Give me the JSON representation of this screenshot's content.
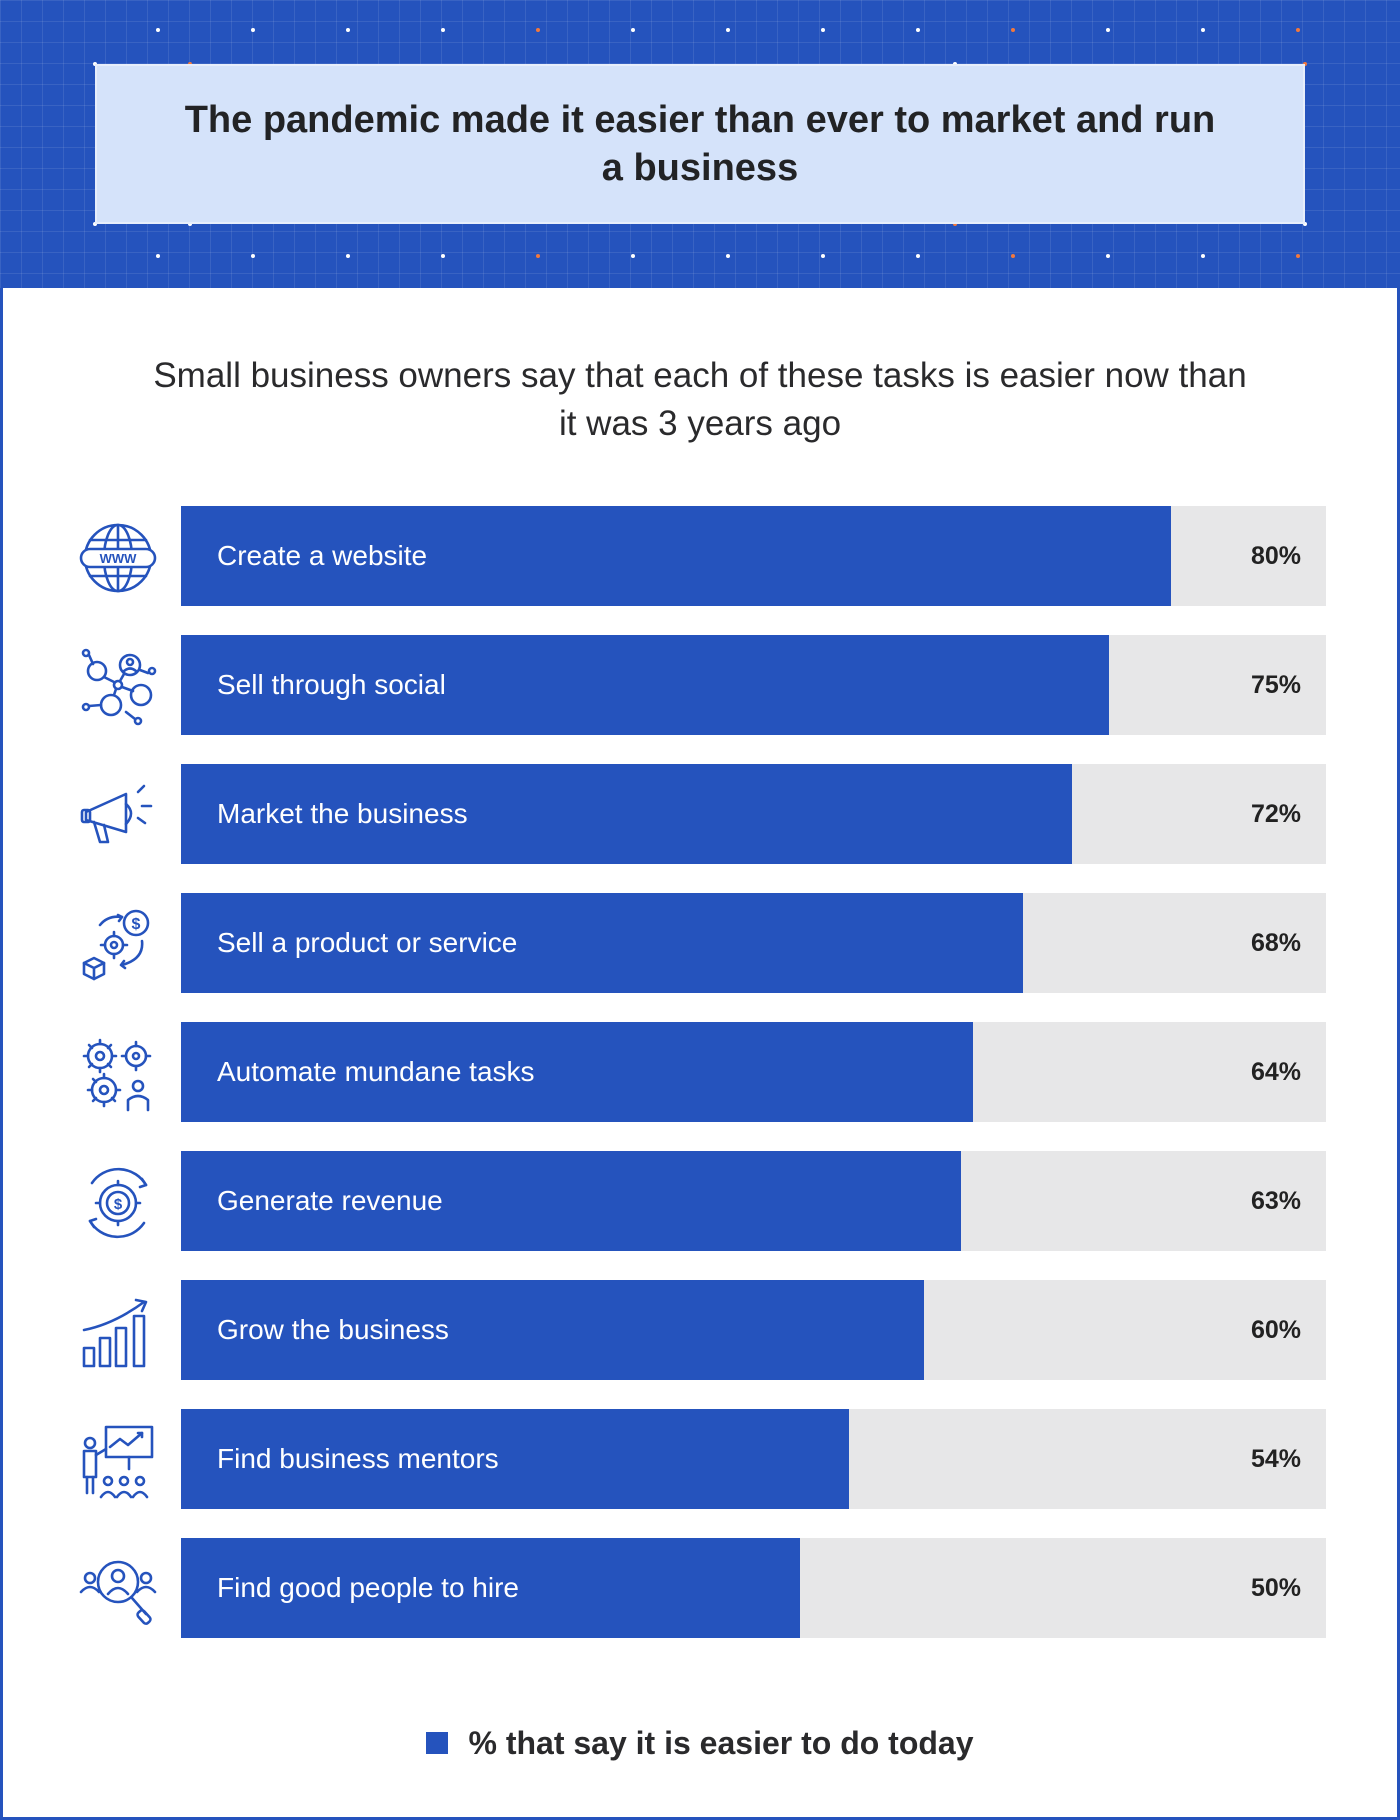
{
  "title": "The pandemic made it easier than ever to market and run a business",
  "subtitle": "Small business owners say that each of these tasks is easier now than it was 3 years ago",
  "colors": {
    "accent": "#2553bd",
    "track": "#e7e7e8",
    "title_box": "#d5e3fa",
    "dot_accent": "#f2783c"
  },
  "chart_data": {
    "type": "bar",
    "orientation": "horizontal",
    "categories": [
      "Create a website",
      "Sell through social",
      "Market the business",
      "Sell a product or service",
      "Automate mundane tasks",
      "Generate revenue",
      "Grow the business",
      "Find business mentors",
      "Find good people to hire"
    ],
    "values": [
      80,
      75,
      72,
      68,
      64,
      63,
      60,
      54,
      50
    ],
    "value_labels": [
      "80%",
      "75%",
      "72%",
      "68%",
      "64%",
      "63%",
      "60%",
      "54%",
      "50%"
    ],
    "icons": [
      "globe-www-icon",
      "social-network-icon",
      "megaphone-icon",
      "product-dollar-cycle-icon",
      "gears-automation-icon",
      "revenue-cycle-icon",
      "growth-chart-icon",
      "mentor-presentation-icon",
      "hiring-search-icon"
    ],
    "xlim": [
      0,
      92.5
    ],
    "legend": {
      "label": "% that say it is easier to do today",
      "position": "bottom-center"
    }
  }
}
